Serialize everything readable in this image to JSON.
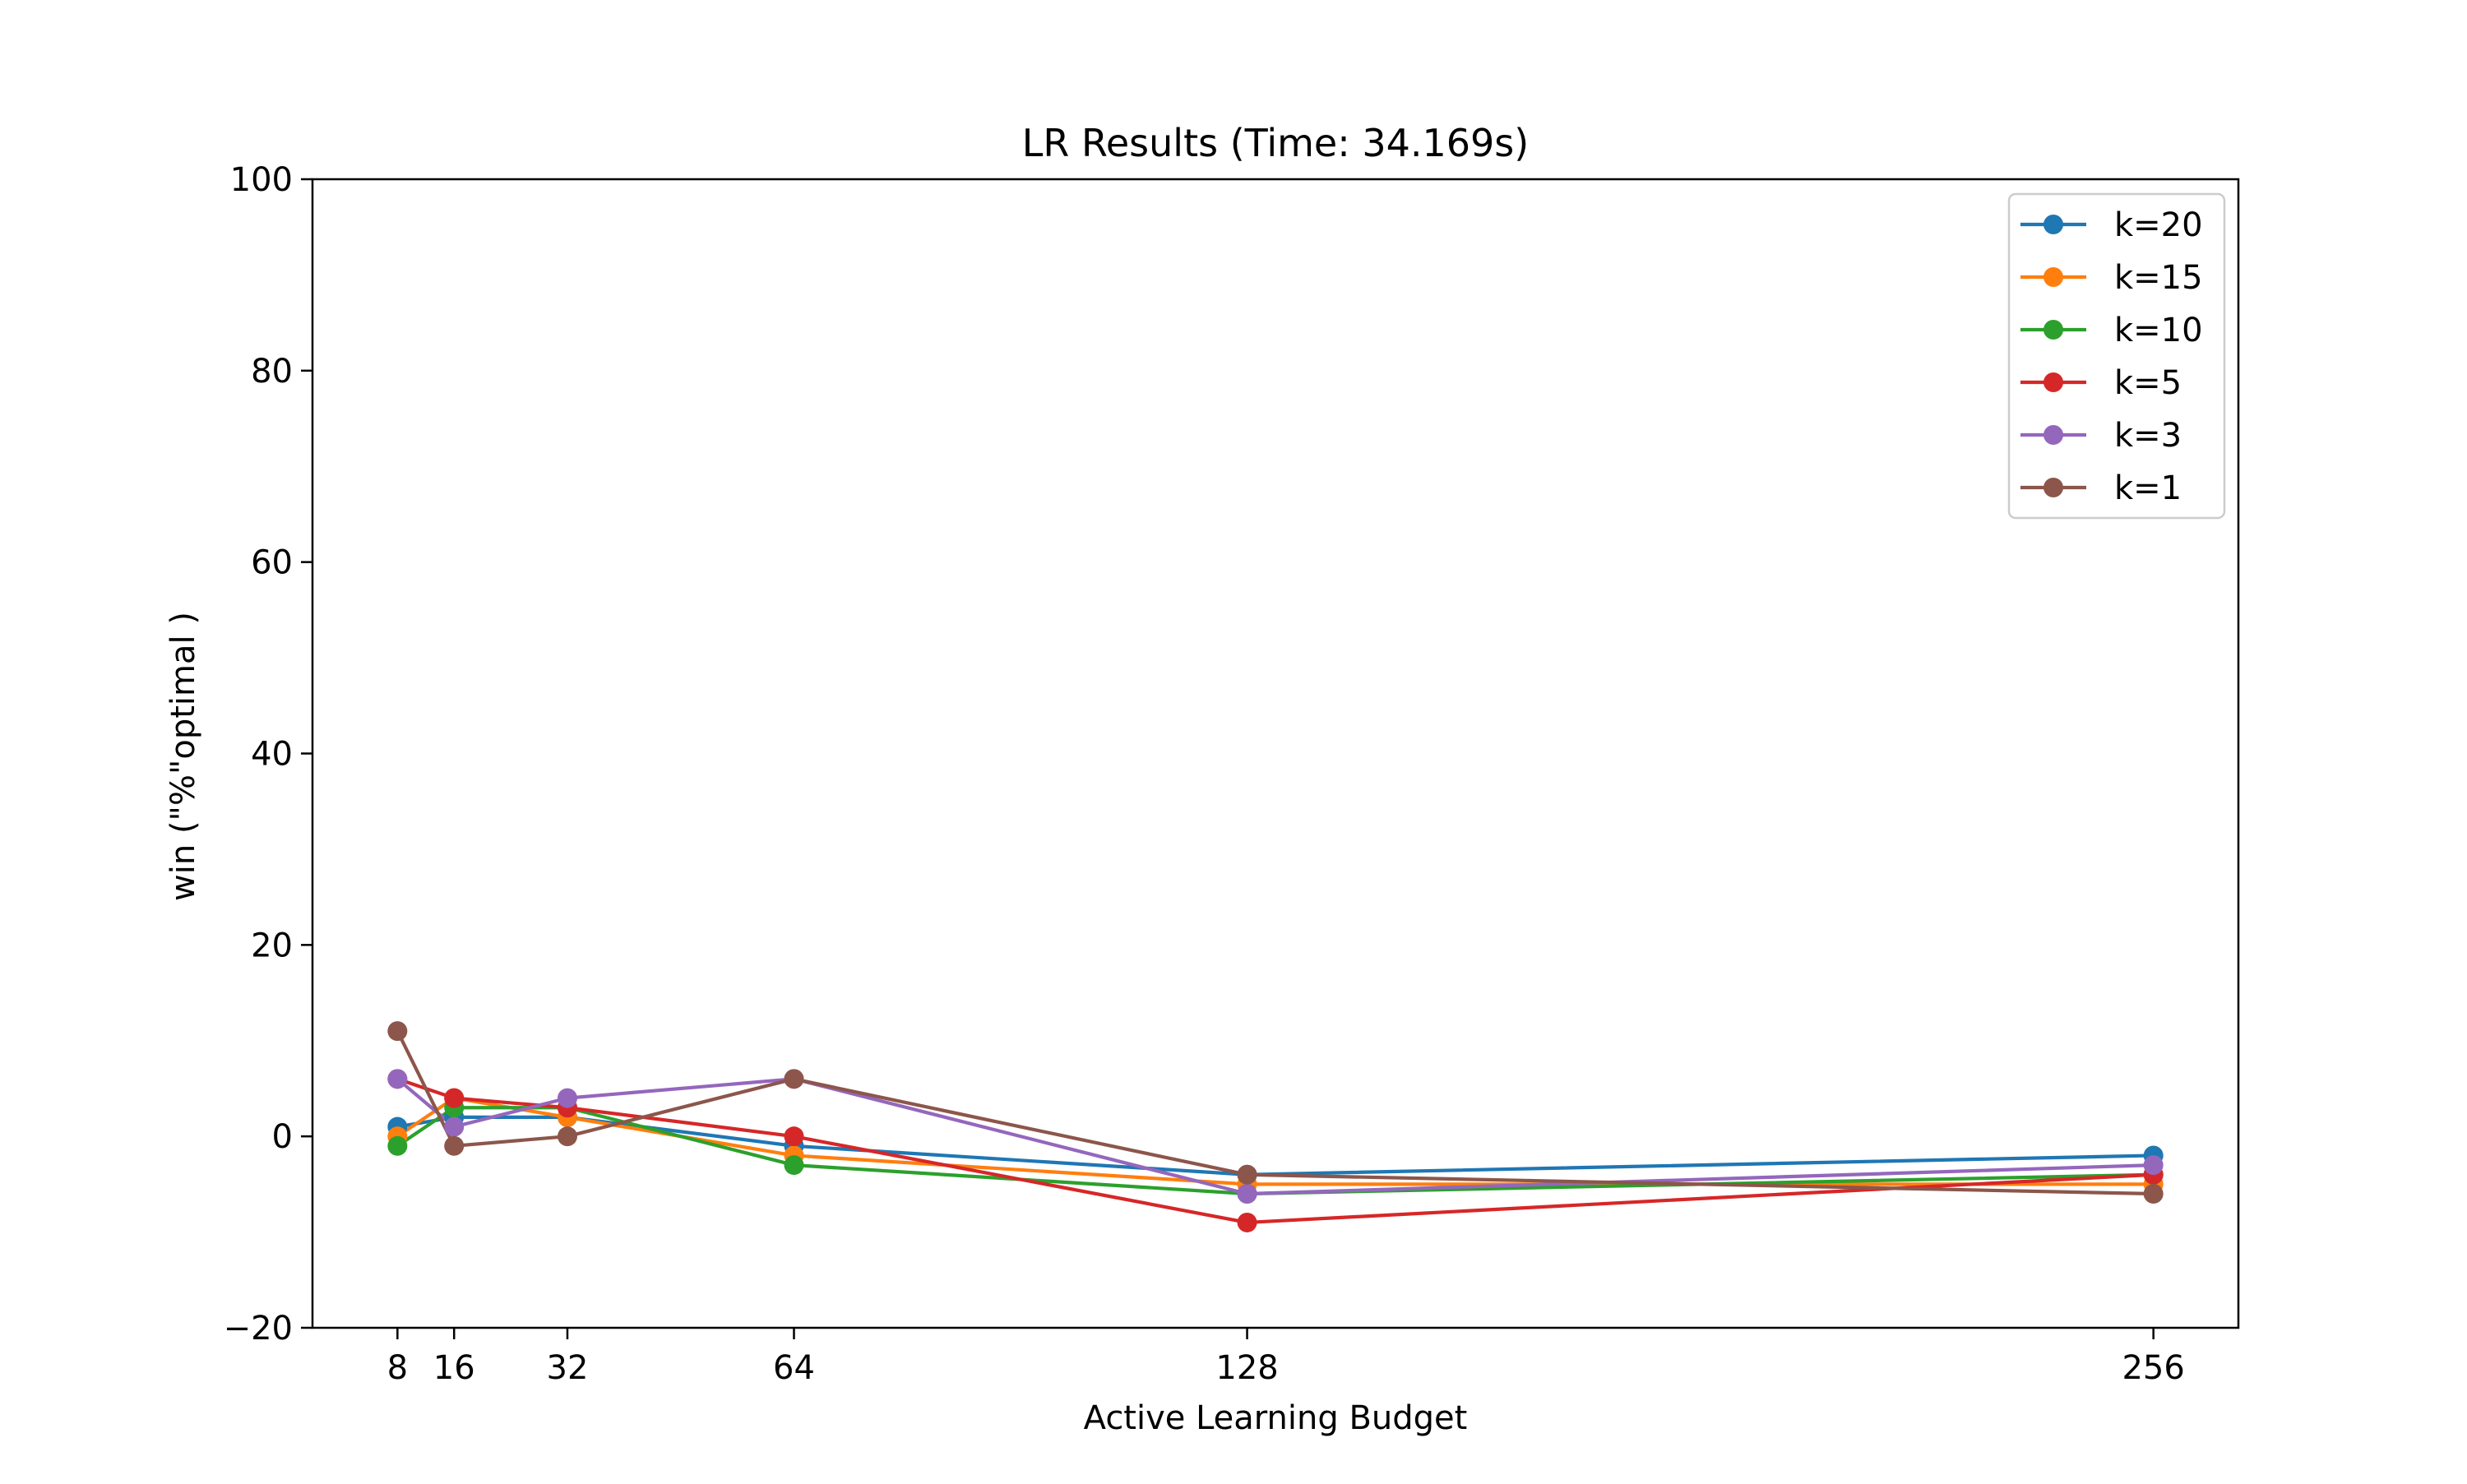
{
  "chart_data": {
    "type": "line",
    "title": "LR Results (Time: 34.169s)",
    "xlabel": "Active Learning Budget",
    "ylabel": "win (\"%\"optimal )",
    "x": [
      8,
      16,
      32,
      64,
      128,
      256
    ],
    "x_ticks": [
      8,
      16,
      32,
      64,
      128,
      256
    ],
    "xlim": [
      -4,
      268
    ],
    "ylim": [
      -20,
      100
    ],
    "y_ticks": [
      -20,
      0,
      20,
      40,
      60,
      80,
      100
    ],
    "y_tick_labels": [
      "−20",
      "0",
      "20",
      "40",
      "60",
      "80",
      "100"
    ],
    "grid": false,
    "legend_position": "top-right",
    "series": [
      {
        "name": "k=20",
        "color": "#1f77b4",
        "values": [
          1,
          2,
          2,
          -1,
          -4,
          -2
        ]
      },
      {
        "name": "k=15",
        "color": "#ff7f0e",
        "values": [
          0,
          4,
          2,
          -2,
          -5,
          -5
        ]
      },
      {
        "name": "k=10",
        "color": "#2ca02c",
        "values": [
          -1,
          3,
          3,
          -3,
          -6,
          -4
        ]
      },
      {
        "name": "k=5",
        "color": "#d62728",
        "values": [
          6,
          4,
          3,
          0,
          -9,
          -4
        ]
      },
      {
        "name": "k=3",
        "color": "#9467bd",
        "values": [
          6,
          1,
          4,
          6,
          -6,
          -3
        ]
      },
      {
        "name": "k=1",
        "color": "#8c564b",
        "values": [
          11,
          -1,
          0,
          6,
          -4,
          -6
        ]
      }
    ]
  }
}
